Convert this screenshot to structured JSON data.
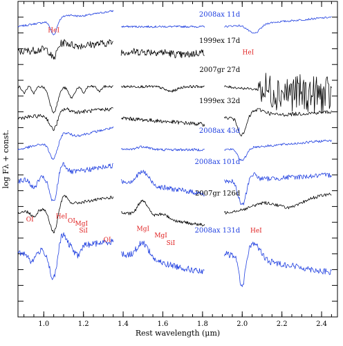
{
  "chart_data": {
    "type": "line",
    "title": "",
    "xlabel": "Rest wavelength (μm)",
    "ylabel": "log Fλ + const.",
    "xlim": [
      0.87,
      2.48
    ],
    "x_ticks": [
      "1.0",
      "1.2",
      "1.4",
      "1.6",
      "1.8",
      "2.0",
      "2.2",
      "2.4"
    ],
    "band_ranges": [
      [
        0.87,
        1.35
      ],
      [
        1.39,
        1.81
      ],
      [
        1.91,
        2.45
      ]
    ],
    "colors": {
      "blue": "#1f3fe0",
      "black": "#000000",
      "red": "#e02020"
    },
    "series": [
      {
        "name": "2008ax 11d",
        "color": "blue",
        "bands": [
          0,
          1,
          2
        ],
        "base": 0.92,
        "slope": [
          0.05,
          0.0,
          0.03
        ],
        "noise": 0.003,
        "features": [
          [
            1.05,
            -0.045,
            0.015
          ],
          [
            2.06,
            -0.03,
            0.03
          ],
          [
            1.12,
            0.01,
            0.03
          ]
        ]
      },
      {
        "name": "1999ex 17d",
        "color": "black",
        "bands": [
          0,
          1
        ],
        "base": 0.84,
        "slope": [
          0.03,
          0.0
        ],
        "noise": 0.012,
        "features": [
          [
            1.05,
            -0.035,
            0.015
          ],
          [
            1.1,
            0.015,
            0.03
          ],
          [
            1.7,
            -0.01,
            0.05
          ]
        ]
      },
      {
        "name": "2007gr 27d",
        "color": "black",
        "bands": [
          0,
          1,
          2
        ],
        "base": 0.73,
        "slope": [
          0.0,
          0.0,
          -0.03
        ],
        "noise": 0.004,
        "noisy_k": true,
        "features": [
          [
            0.9,
            -0.02,
            0.01
          ],
          [
            0.95,
            -0.02,
            0.01
          ],
          [
            1.05,
            -0.08,
            0.02
          ],
          [
            1.14,
            -0.035,
            0.015
          ],
          [
            1.2,
            -0.02,
            0.01
          ],
          [
            1.28,
            -0.015,
            0.01
          ],
          [
            1.64,
            -0.015,
            0.03
          ]
        ]
      },
      {
        "name": "1999ex 32d",
        "color": "black",
        "bands": [
          0,
          1,
          2
        ],
        "base": 0.63,
        "slope": [
          0.03,
          -0.02,
          0.02
        ],
        "noise": 0.006,
        "features": [
          [
            1.05,
            -0.05,
            0.02
          ],
          [
            1.1,
            0.015,
            0.03
          ],
          [
            2.0,
            -0.06,
            0.02
          ],
          [
            2.08,
            0.02,
            0.04
          ]
        ]
      },
      {
        "name": "2008ax 43d",
        "color": "blue",
        "bands": [
          0,
          1,
          2
        ],
        "base": 0.53,
        "slope": [
          0.07,
          0.0,
          0.03
        ],
        "noise": 0.004,
        "features": [
          [
            1.05,
            -0.06,
            0.02
          ],
          [
            1.1,
            0.02,
            0.03
          ],
          [
            2.0,
            -0.04,
            0.02
          ],
          [
            1.5,
            0.01,
            0.03
          ]
        ]
      },
      {
        "name": "2008ax 101d",
        "color": "blue",
        "bands": [
          0,
          1,
          2
        ],
        "base": 0.43,
        "slope": [
          0.05,
          -0.04,
          0.02
        ],
        "noise": 0.008,
        "features": [
          [
            0.95,
            -0.03,
            0.015
          ],
          [
            1.05,
            -0.09,
            0.02
          ],
          [
            1.09,
            0.04,
            0.02
          ],
          [
            1.5,
            0.04,
            0.03
          ],
          [
            2.0,
            -0.08,
            0.02
          ],
          [
            2.05,
            0.02,
            0.02
          ]
        ]
      },
      {
        "name": "2007gr 126d",
        "color": "black",
        "bands": [
          0,
          1,
          2
        ],
        "base": 0.33,
        "slope": [
          0.05,
          -0.04,
          0.06
        ],
        "noise": 0.005,
        "features": [
          [
            0.95,
            -0.02,
            0.015
          ],
          [
            1.05,
            -0.08,
            0.02
          ],
          [
            1.1,
            0.03,
            0.02
          ],
          [
            1.5,
            0.05,
            0.025
          ],
          [
            1.6,
            0.015,
            0.03
          ],
          [
            2.25,
            -0.02,
            0.05
          ],
          [
            2.1,
            0.01,
            0.04
          ]
        ]
      },
      {
        "name": "2008ax 131d",
        "color": "blue",
        "bands": [
          0,
          1,
          2
        ],
        "base": 0.2,
        "slope": [
          0.04,
          -0.06,
          -0.06
        ],
        "noise": 0.01,
        "features": [
          [
            0.94,
            -0.03,
            0.015
          ],
          [
            1.05,
            -0.1,
            0.02
          ],
          [
            1.09,
            0.05,
            0.02
          ],
          [
            1.17,
            -0.03,
            0.015
          ],
          [
            1.5,
            0.05,
            0.03
          ],
          [
            2.0,
            -0.1,
            0.015
          ],
          [
            2.06,
            0.05,
            0.03
          ]
        ]
      }
    ],
    "series_labels": [
      {
        "text": "2008ax 11d",
        "color": "blue",
        "x": 2.0,
        "level": 0.952
      },
      {
        "text": "1999ex 17d",
        "color": "black",
        "x": 2.0,
        "level": 0.868
      },
      {
        "text": "2007gr 27d",
        "color": "black",
        "x": 2.0,
        "level": 0.776
      },
      {
        "text": "1999ex 32d",
        "color": "black",
        "x": 2.0,
        "level": 0.678
      },
      {
        "text": "2008ax 43d",
        "color": "blue",
        "x": 2.0,
        "level": 0.583
      },
      {
        "text": "2008ax 101d",
        "color": "blue",
        "x": 2.0,
        "level": 0.485
      },
      {
        "text": "2007gr 126d",
        "color": "black",
        "x": 2.0,
        "level": 0.385
      },
      {
        "text": "2008ax 131d",
        "color": "blue",
        "x": 2.0,
        "level": 0.268
      }
    ],
    "annotations": [
      {
        "text": "HeI",
        "x": 1.05,
        "level": 0.902
      },
      {
        "text": "HeI",
        "x": 2.03,
        "level": 0.832
      },
      {
        "text": "OI",
        "x": 0.93,
        "level": 0.303
      },
      {
        "text": "HeI",
        "x": 1.09,
        "level": 0.313
      },
      {
        "text": "OI",
        "x": 1.14,
        "level": 0.298
      },
      {
        "text": "MgI",
        "x": 1.19,
        "level": 0.29
      },
      {
        "text": "SiI",
        "x": 1.2,
        "level": 0.267
      },
      {
        "text": "OI",
        "x": 1.32,
        "level": 0.238
      },
      {
        "text": "MgI",
        "x": 1.5,
        "level": 0.273
      },
      {
        "text": "MgI",
        "x": 1.59,
        "level": 0.252
      },
      {
        "text": "SiI",
        "x": 1.64,
        "level": 0.228
      },
      {
        "text": "HeI",
        "x": 2.07,
        "level": 0.268
      }
    ]
  }
}
